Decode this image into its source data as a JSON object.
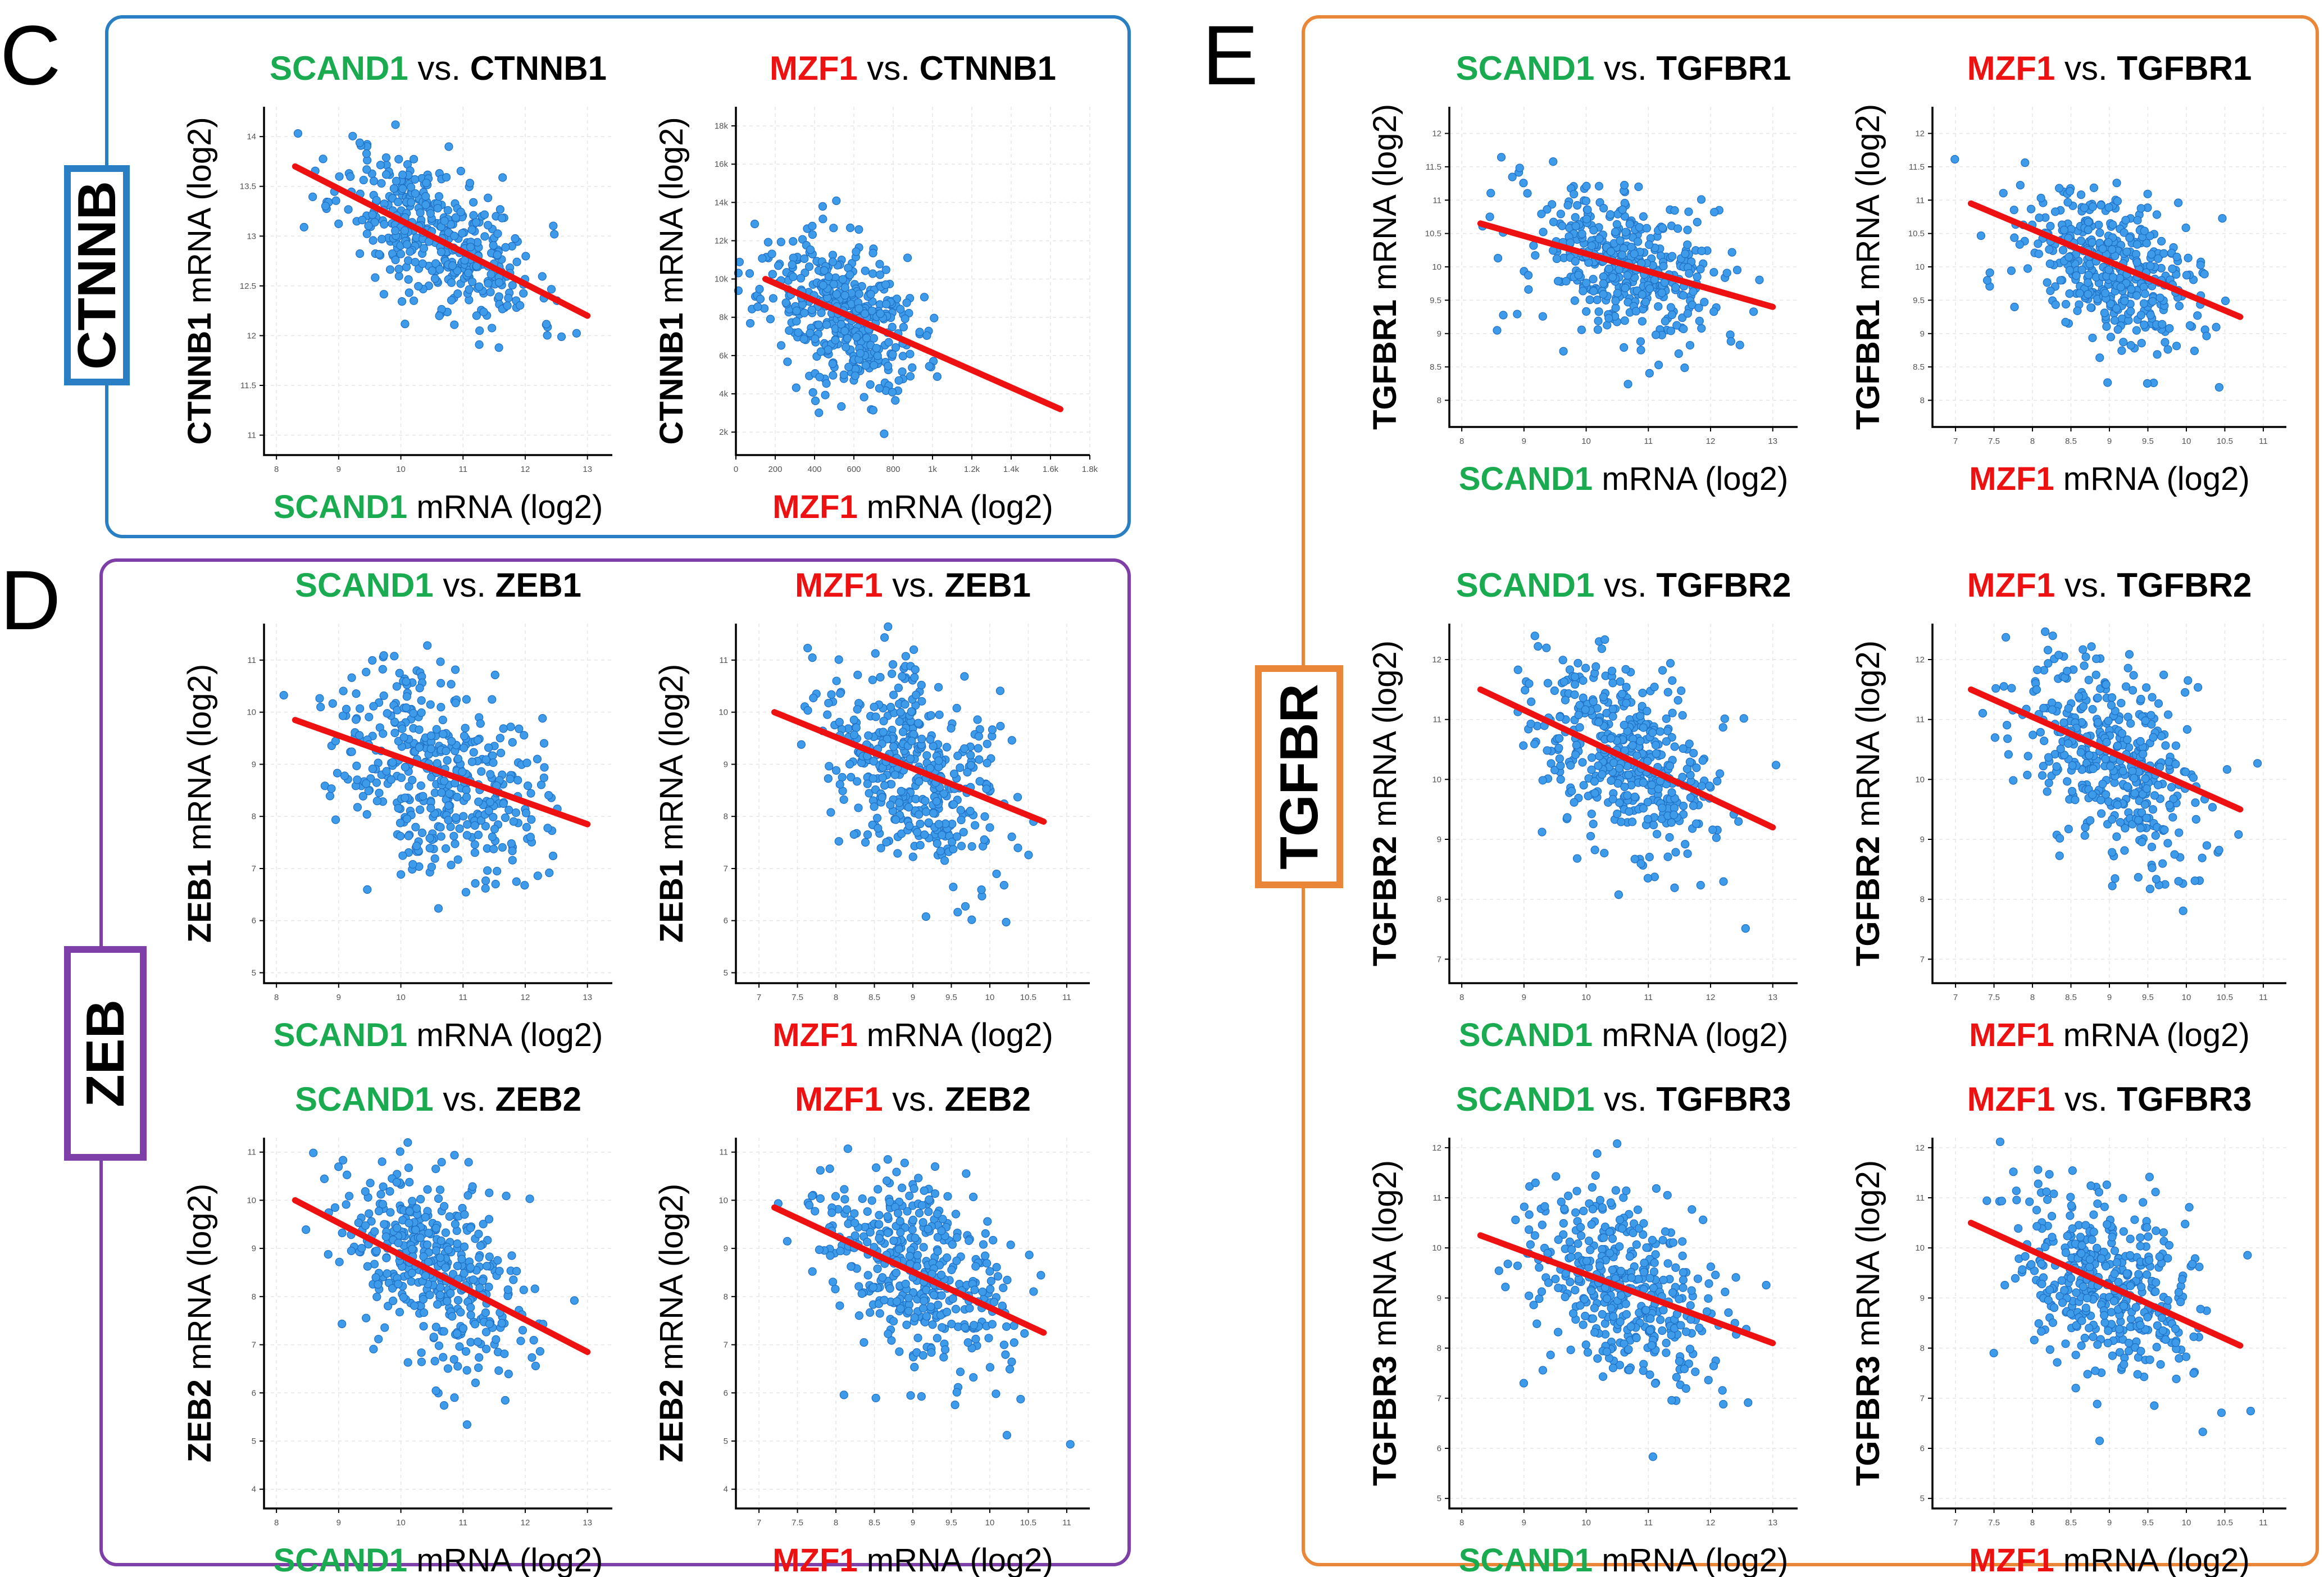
{
  "colors": {
    "scand1": "#1aaa4f",
    "mzf1": "#ee1111",
    "black": "#000000",
    "point": "#3d9be9",
    "point_edge": "#1f6fc4",
    "fit": "#ee1111",
    "box_c": "#2a7fc4",
    "box_d": "#7e3fa8",
    "box_e": "#ea8638"
  },
  "panels": [
    {
      "id": "C",
      "letter": "C",
      "tag": "CTNNB",
      "color": "#2a7fc4"
    },
    {
      "id": "D",
      "letter": "D",
      "tag": "ZEB",
      "color": "#7e3fa8"
    },
    {
      "id": "E",
      "letter": "E",
      "tag": "TGFBR",
      "color": "#ea8638"
    }
  ],
  "vs_text": " vs. ",
  "mrna_suffix": " mRNA (log2)",
  "chart_data": [
    {
      "id": "c1",
      "type": "scatter",
      "gene_x": "SCAND1",
      "gene_y": "CTNNB1",
      "x_color": "scand1",
      "xlim": [
        7.8,
        13.4
      ],
      "ylim": [
        10.8,
        14.3
      ],
      "xticks": [
        "8",
        "9",
        "10",
        "11",
        "12",
        "13"
      ],
      "yticks": [
        "11",
        "11.5",
        "12",
        "12.5",
        "13",
        "13.5",
        "14"
      ],
      "xtick_values": [
        8,
        9,
        10,
        11,
        12,
        13
      ],
      "ytick_values": [
        11,
        11.5,
        12,
        12.5,
        13,
        13.5,
        14
      ],
      "fit": [
        [
          8.3,
          13.7
        ],
        [
          13.0,
          12.2
        ]
      ],
      "center": [
        10.6,
        13.0
      ],
      "spread": [
        0.8,
        0.35
      ],
      "slope": -0.32,
      "n": 420,
      "seed": 11
    },
    {
      "id": "c2",
      "type": "scatter",
      "gene_x": "MZF1",
      "gene_y": "CTNNB1",
      "x_color": "mzf1",
      "xlim": [
        0,
        1800
      ],
      "ylim": [
        800,
        19000
      ],
      "xticks": [
        "0",
        "200",
        "400",
        "600",
        "800",
        "1k",
        "1.2k",
        "1.4k",
        "1.6k",
        "1.8k"
      ],
      "yticks": [
        "2k",
        "4k",
        "6k",
        "8k",
        "10k",
        "12k",
        "14k",
        "16k",
        "18k"
      ],
      "xtick_values": [
        0,
        200,
        400,
        600,
        800,
        1000,
        1200,
        1400,
        1600,
        1800
      ],
      "ytick_values": [
        2000,
        4000,
        6000,
        8000,
        10000,
        12000,
        14000,
        16000,
        18000
      ],
      "fit": [
        [
          150,
          10000
        ],
        [
          1650,
          3200
        ]
      ],
      "center": [
        520,
        8200
      ],
      "spread": [
        200,
        1900
      ],
      "slope": -4.5,
      "n": 420,
      "seed": 23
    },
    {
      "id": "d1",
      "type": "scatter",
      "gene_x": "SCAND1",
      "gene_y": "ZEB1",
      "x_color": "scand1",
      "xlim": [
        7.8,
        13.4
      ],
      "ylim": [
        4.8,
        11.7
      ],
      "xticks": [
        "8",
        "9",
        "10",
        "11",
        "12",
        "13"
      ],
      "yticks": [
        "5",
        "6",
        "7",
        "8",
        "9",
        "10",
        "11"
      ],
      "xtick_values": [
        8,
        9,
        10,
        11,
        12,
        13
      ],
      "ytick_values": [
        5,
        6,
        7,
        8,
        9,
        10,
        11
      ],
      "fit": [
        [
          8.3,
          9.85
        ],
        [
          13.0,
          7.85
        ]
      ],
      "center": [
        10.6,
        8.9
      ],
      "spread": [
        0.8,
        0.95
      ],
      "slope": -0.42,
      "n": 420,
      "seed": 37
    },
    {
      "id": "d2",
      "type": "scatter",
      "gene_x": "MZF1",
      "gene_y": "ZEB1",
      "x_color": "mzf1",
      "xlim": [
        6.7,
        11.3
      ],
      "ylim": [
        4.8,
        11.7
      ],
      "xticks": [
        "7",
        "7.5",
        "8",
        "8.5",
        "9",
        "9.5",
        "10",
        "10.5",
        "11"
      ],
      "yticks": [
        "5",
        "6",
        "7",
        "8",
        "9",
        "10",
        "11"
      ],
      "xtick_values": [
        7,
        7.5,
        8,
        8.5,
        9,
        9.5,
        10,
        10.5,
        11
      ],
      "ytick_values": [
        5,
        6,
        7,
        8,
        9,
        10,
        11
      ],
      "fit": [
        [
          7.2,
          10.0
        ],
        [
          10.7,
          7.9
        ]
      ],
      "center": [
        9.0,
        8.9
      ],
      "spread": [
        0.6,
        0.95
      ],
      "slope": -0.6,
      "n": 420,
      "seed": 41
    },
    {
      "id": "d3",
      "type": "scatter",
      "gene_x": "SCAND1",
      "gene_y": "ZEB2",
      "x_color": "scand1",
      "xlim": [
        7.8,
        13.4
      ],
      "ylim": [
        3.6,
        11.3
      ],
      "xticks": [
        "8",
        "9",
        "10",
        "11",
        "12",
        "13"
      ],
      "yticks": [
        "4",
        "5",
        "6",
        "7",
        "8",
        "9",
        "10",
        "11"
      ],
      "xtick_values": [
        8,
        9,
        10,
        11,
        12,
        13
      ],
      "ytick_values": [
        4,
        5,
        6,
        7,
        8,
        9,
        10,
        11
      ],
      "fit": [
        [
          8.3,
          10.0
        ],
        [
          13.0,
          6.85
        ]
      ],
      "center": [
        10.6,
        8.5
      ],
      "spread": [
        0.8,
        0.95
      ],
      "slope": -0.65,
      "n": 420,
      "seed": 53
    },
    {
      "id": "d4",
      "type": "scatter",
      "gene_x": "MZF1",
      "gene_y": "ZEB2",
      "x_color": "mzf1",
      "xlim": [
        6.7,
        11.3
      ],
      "ylim": [
        3.6,
        11.3
      ],
      "xticks": [
        "7",
        "7.5",
        "8",
        "8.5",
        "9",
        "9.5",
        "10",
        "10.5",
        "11"
      ],
      "yticks": [
        "4",
        "5",
        "6",
        "7",
        "8",
        "9",
        "10",
        "11"
      ],
      "xtick_values": [
        7,
        7.5,
        8,
        8.5,
        9,
        9.5,
        10,
        10.5,
        11
      ],
      "ytick_values": [
        4,
        5,
        6,
        7,
        8,
        9,
        10,
        11
      ],
      "fit": [
        [
          7.2,
          9.85
        ],
        [
          10.7,
          7.25
        ]
      ],
      "center": [
        9.0,
        8.5
      ],
      "spread": [
        0.6,
        0.95
      ],
      "slope": -0.75,
      "n": 420,
      "seed": 67
    },
    {
      "id": "e1",
      "type": "scatter",
      "gene_x": "SCAND1",
      "gene_y": "TGFBR1",
      "x_color": "scand1",
      "xlim": [
        7.8,
        13.4
      ],
      "ylim": [
        7.6,
        12.4
      ],
      "xticks": [
        "8",
        "9",
        "10",
        "11",
        "12",
        "13"
      ],
      "yticks": [
        "8",
        "8.5",
        "9",
        "9.5",
        "10",
        "10.5",
        "11",
        "11.5",
        "12"
      ],
      "xtick_values": [
        8,
        9,
        10,
        11,
        12,
        13
      ],
      "ytick_values": [
        8,
        8.5,
        9,
        9.5,
        10,
        10.5,
        11,
        11.5,
        12
      ],
      "fit": [
        [
          8.3,
          10.65
        ],
        [
          13.0,
          9.4
        ]
      ],
      "center": [
        10.6,
        10.0
      ],
      "spread": [
        0.8,
        0.55
      ],
      "slope": -0.25,
      "n": 420,
      "seed": 71
    },
    {
      "id": "e2",
      "type": "scatter",
      "gene_x": "MZF1",
      "gene_y": "TGFBR1",
      "x_color": "mzf1",
      "xlim": [
        6.7,
        11.3
      ],
      "ylim": [
        7.6,
        12.4
      ],
      "xticks": [
        "7",
        "7.5",
        "8",
        "8.5",
        "9",
        "9.5",
        "10",
        "10.5",
        "11"
      ],
      "yticks": [
        "8",
        "8.5",
        "9",
        "9.5",
        "10",
        "10.5",
        "11",
        "11.5",
        "12"
      ],
      "xtick_values": [
        7,
        7.5,
        8,
        8.5,
        9,
        9.5,
        10,
        10.5,
        11
      ],
      "ytick_values": [
        8,
        8.5,
        9,
        9.5,
        10,
        10.5,
        11,
        11.5,
        12
      ],
      "fit": [
        [
          7.2,
          10.95
        ],
        [
          10.7,
          9.25
        ]
      ],
      "center": [
        9.0,
        10.0
      ],
      "spread": [
        0.6,
        0.55
      ],
      "slope": -0.45,
      "n": 420,
      "seed": 83
    },
    {
      "id": "e3",
      "type": "scatter",
      "gene_x": "SCAND1",
      "gene_y": "TGFBR2",
      "x_color": "scand1",
      "xlim": [
        7.8,
        13.4
      ],
      "ylim": [
        6.6,
        12.6
      ],
      "xticks": [
        "8",
        "9",
        "10",
        "11",
        "12",
        "13"
      ],
      "yticks": [
        "7",
        "8",
        "9",
        "10",
        "11",
        "12"
      ],
      "xtick_values": [
        8,
        9,
        10,
        11,
        12,
        13
      ],
      "ytick_values": [
        7,
        8,
        9,
        10,
        11,
        12
      ],
      "fit": [
        [
          8.3,
          11.5
        ],
        [
          13.0,
          9.2
        ]
      ],
      "center": [
        10.6,
        10.4
      ],
      "spread": [
        0.8,
        0.8
      ],
      "slope": -0.5,
      "n": 420,
      "seed": 97
    },
    {
      "id": "e4",
      "type": "scatter",
      "gene_x": "MZF1",
      "gene_y": "TGFBR2",
      "x_color": "mzf1",
      "xlim": [
        6.7,
        11.3
      ],
      "ylim": [
        6.6,
        12.6
      ],
      "xticks": [
        "7",
        "7.5",
        "8",
        "8.5",
        "9",
        "9.5",
        "10",
        "10.5",
        "11"
      ],
      "yticks": [
        "7",
        "8",
        "9",
        "10",
        "11",
        "12"
      ],
      "xtick_values": [
        7,
        7.5,
        8,
        8.5,
        9,
        9.5,
        10,
        10.5,
        11
      ],
      "ytick_values": [
        7,
        8,
        9,
        10,
        11,
        12
      ],
      "fit": [
        [
          7.2,
          11.5
        ],
        [
          10.7,
          9.5
        ]
      ],
      "center": [
        9.0,
        10.4
      ],
      "spread": [
        0.6,
        0.8
      ],
      "slope": -0.6,
      "n": 420,
      "seed": 101
    },
    {
      "id": "e5",
      "type": "scatter",
      "gene_x": "SCAND1",
      "gene_y": "TGFBR3",
      "x_color": "scand1",
      "xlim": [
        7.8,
        13.4
      ],
      "ylim": [
        4.8,
        12.2
      ],
      "xticks": [
        "8",
        "9",
        "10",
        "11",
        "12",
        "13"
      ],
      "yticks": [
        "5",
        "6",
        "7",
        "8",
        "9",
        "10",
        "11",
        "12"
      ],
      "xtick_values": [
        8,
        9,
        10,
        11,
        12,
        13
      ],
      "ytick_values": [
        5,
        6,
        7,
        8,
        9,
        10,
        11,
        12
      ],
      "fit": [
        [
          8.3,
          10.25
        ],
        [
          13.0,
          8.1
        ]
      ],
      "center": [
        10.6,
        9.2
      ],
      "spread": [
        0.8,
        0.9
      ],
      "slope": -0.45,
      "n": 420,
      "seed": 113
    },
    {
      "id": "e6",
      "type": "scatter",
      "gene_x": "MZF1",
      "gene_y": "TGFBR3",
      "x_color": "mzf1",
      "xlim": [
        6.7,
        11.3
      ],
      "ylim": [
        4.8,
        12.2
      ],
      "xticks": [
        "7",
        "7.5",
        "8",
        "8.5",
        "9",
        "9.5",
        "10",
        "10.5",
        "11"
      ],
      "yticks": [
        "5",
        "6",
        "7",
        "8",
        "9",
        "10",
        "11",
        "12"
      ],
      "xtick_values": [
        7,
        7.5,
        8,
        8.5,
        9,
        9.5,
        10,
        10.5,
        11
      ],
      "ytick_values": [
        5,
        6,
        7,
        8,
        9,
        10,
        11,
        12
      ],
      "fit": [
        [
          7.2,
          10.5
        ],
        [
          10.7,
          8.05
        ]
      ],
      "center": [
        9.0,
        9.2
      ],
      "spread": [
        0.6,
        0.9
      ],
      "slope": -0.65,
      "n": 420,
      "seed": 127
    }
  ]
}
